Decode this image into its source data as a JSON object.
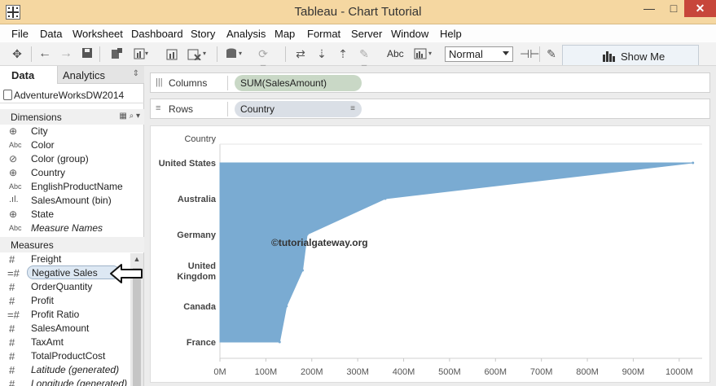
{
  "window": {
    "title": "Tableau - Chart Tutorial",
    "minimize": "—",
    "maximize": "□",
    "close": "✕"
  },
  "menu": [
    "File",
    "Data",
    "Worksheet",
    "Dashboard",
    "Story",
    "Analysis",
    "Map",
    "Format",
    "Server",
    "Window",
    "Help"
  ],
  "toolbar": {
    "text_label": "Abc",
    "fit_value": "Normal",
    "show_me": "Show Me"
  },
  "tabs": {
    "data": "Data",
    "analytics": "Analytics"
  },
  "datasource": "AdventureWorksDW2014",
  "dimensions": {
    "header": "Dimensions",
    "items": [
      {
        "label": "City",
        "icon": "globe-icon"
      },
      {
        "label": "Color",
        "icon": "abc-icon"
      },
      {
        "label": "Color (group)",
        "icon": "paperclip-icon"
      },
      {
        "label": "Country",
        "icon": "globe-icon"
      },
      {
        "label": "EnglishProductName",
        "icon": "abc-icon"
      },
      {
        "label": "SalesAmount (bin)",
        "icon": "bin-icon"
      },
      {
        "label": "State",
        "icon": "globe-icon"
      },
      {
        "label": "Measure Names",
        "icon": "abc-icon"
      }
    ]
  },
  "measures": {
    "header": "Measures",
    "items": [
      {
        "label": "Freight"
      },
      {
        "label": "Negative Sales"
      },
      {
        "label": "OrderQuantity"
      },
      {
        "label": "Profit"
      },
      {
        "label": "Profit Ratio"
      },
      {
        "label": "SalesAmount"
      },
      {
        "label": "TaxAmt"
      },
      {
        "label": "TotalProductCost"
      },
      {
        "label": "Latitude (generated)"
      },
      {
        "label": "Longitude (generated)"
      }
    ]
  },
  "shelves": {
    "columns_label": "Columns",
    "columns_pill": "SUM(SalesAmount)",
    "rows_label": "Rows",
    "rows_pill": "Country"
  },
  "watermark": "©tutorialgateway.org",
  "colors": {
    "area_fill": "#7aabd2",
    "pill_green": "#c9d8c6"
  },
  "chart_data": {
    "type": "area",
    "orientation": "horizontal",
    "ylabel": "Country",
    "categories": [
      "United States",
      "Australia",
      "Germany",
      "United Kingdom",
      "Canada",
      "France"
    ],
    "category_labels": [
      [
        "United States"
      ],
      [
        "Australia"
      ],
      [
        "Germany"
      ],
      [
        "United",
        "Kingdom"
      ],
      [
        "Canada"
      ],
      [
        "France"
      ]
    ],
    "values": [
      1030000000,
      360000000,
      190000000,
      180000000,
      145000000,
      130000000
    ],
    "x_ticks": [
      "0M",
      "100M",
      "200M",
      "300M",
      "400M",
      "500M",
      "600M",
      "700M",
      "800M",
      "900M",
      "1000M"
    ],
    "xlim": [
      0,
      1050000000
    ],
    "grid": false
  }
}
